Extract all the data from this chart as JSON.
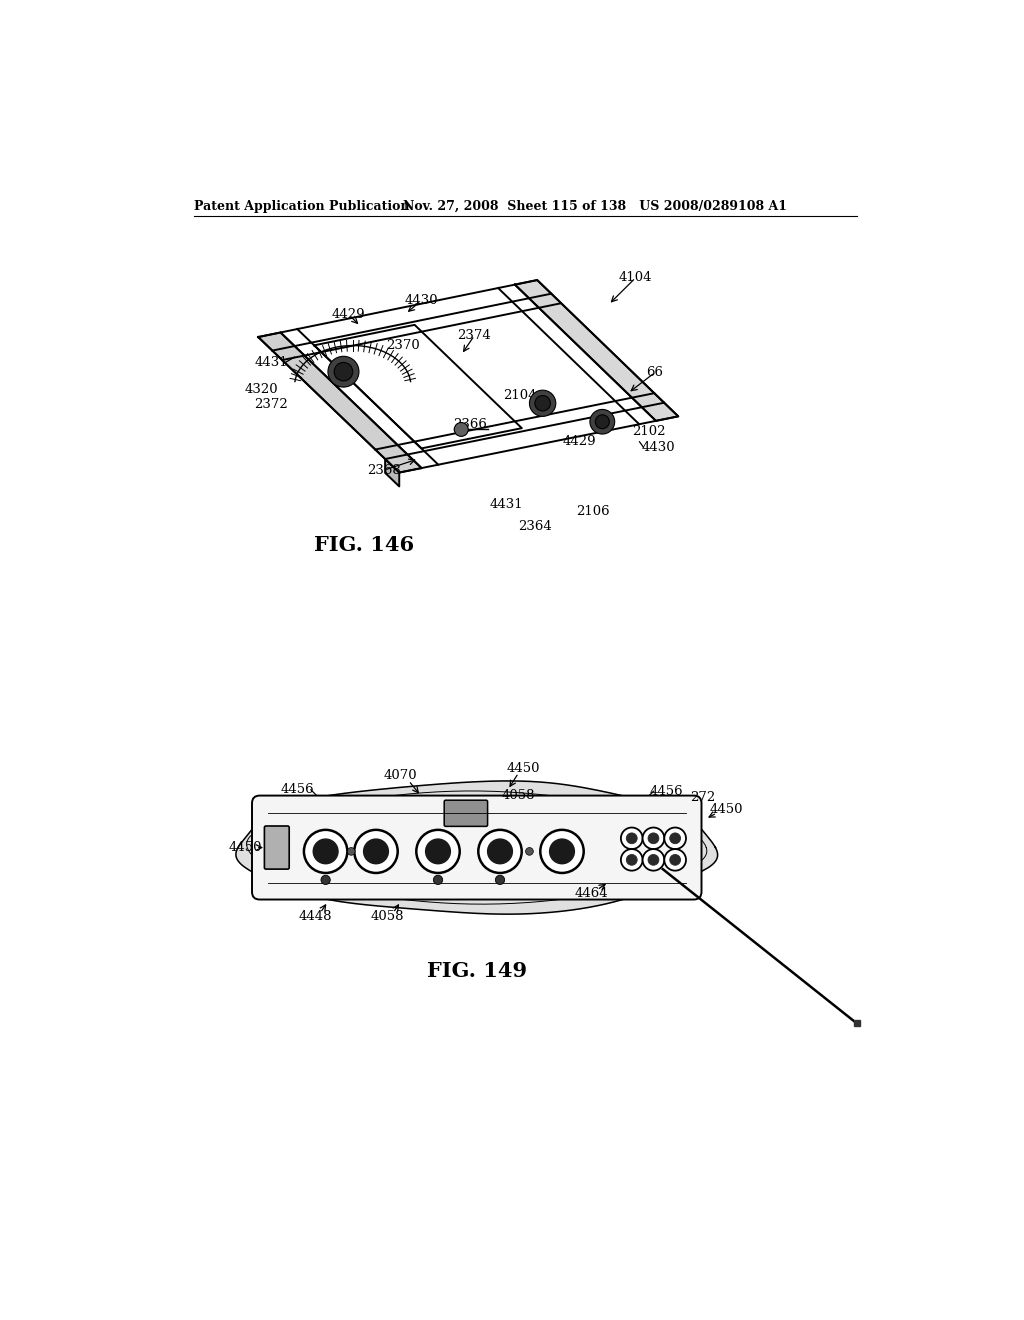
{
  "bg_color": "#ffffff",
  "header_left": "Patent Application Publication",
  "header_right": "Nov. 27, 2008  Sheet 115 of 138   US 2008/0289108 A1",
  "fig146_caption": "FIG. 146",
  "fig149_caption": "FIG. 149"
}
